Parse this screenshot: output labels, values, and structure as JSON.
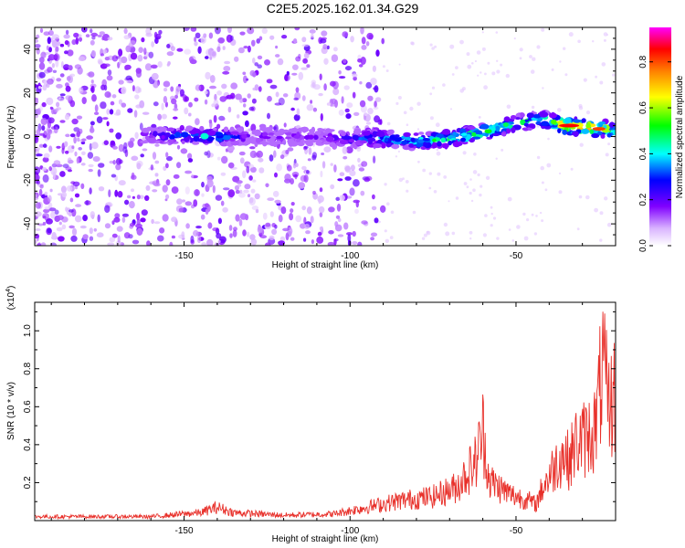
{
  "title": "C2E5.2025.162.01.34.G29",
  "chart_data": [
    {
      "type": "heatmap",
      "name": "spectrogram",
      "xlabel": "Height of straight line (km)",
      "ylabel": "Frequency (Hz)",
      "xlim": [
        -195,
        -20
      ],
      "ylim": [
        -50,
        50
      ],
      "xticks": [
        -150,
        -100,
        -50
      ],
      "yticks": [
        -40,
        -20,
        0,
        20,
        40
      ],
      "colorbar": {
        "label": "Normalized spectral amplitude",
        "ticks": [
          0.0,
          0.2,
          0.4,
          0.6,
          0.8
        ],
        "range": [
          0,
          0.95
        ],
        "colormap": [
          "#ffffff",
          "#d9b3ff",
          "#8000ff",
          "#0000ff",
          "#00ffff",
          "#00ff00",
          "#ffff00",
          "#ff8000",
          "#ff0000",
          "#ff00ff"
        ]
      },
      "ridge": [
        {
          "x": -162,
          "y": 0.5,
          "amp": 0.25
        },
        {
          "x": -150,
          "y": 0.5,
          "amp": 0.35
        },
        {
          "x": -140,
          "y": 0,
          "amp": 0.45
        },
        {
          "x": -130,
          "y": 0,
          "amp": 0.2
        },
        {
          "x": -110,
          "y": 0,
          "amp": 0.2
        },
        {
          "x": -100,
          "y": -1,
          "amp": 0.3
        },
        {
          "x": -90,
          "y": -1,
          "amp": 0.45
        },
        {
          "x": -80,
          "y": -2,
          "amp": 0.5
        },
        {
          "x": -70,
          "y": -1,
          "amp": 0.55
        },
        {
          "x": -60,
          "y": 2,
          "amp": 0.6
        },
        {
          "x": -50,
          "y": 6,
          "amp": 0.55
        },
        {
          "x": -42,
          "y": 8,
          "amp": 0.5
        },
        {
          "x": -35,
          "y": 5,
          "amp": 0.9
        },
        {
          "x": -27,
          "y": 4,
          "amp": 0.85
        },
        {
          "x": -20,
          "y": 3,
          "amp": 0.6
        }
      ]
    },
    {
      "type": "line",
      "name": "snr",
      "xlabel": "Height of straight line (km)",
      "ylabel": "SNR (10 * v/v)",
      "yscale_label": "(x10",
      "yscale_exp": "4",
      "xlim": [
        -195,
        -20
      ],
      "ylim": [
        0,
        1.15
      ],
      "xticks": [
        -150,
        -100,
        -50
      ],
      "yticks": [
        0.2,
        0.4,
        0.6,
        0.8,
        1.0
      ],
      "color": "#e8302a",
      "envelope": [
        {
          "x": -195,
          "y": 0.03
        },
        {
          "x": -160,
          "y": 0.03
        },
        {
          "x": -145,
          "y": 0.06
        },
        {
          "x": -140,
          "y": 0.1
        },
        {
          "x": -135,
          "y": 0.06
        },
        {
          "x": -120,
          "y": 0.04
        },
        {
          "x": -105,
          "y": 0.05
        },
        {
          "x": -95,
          "y": 0.1
        },
        {
          "x": -85,
          "y": 0.15
        },
        {
          "x": -75,
          "y": 0.18
        },
        {
          "x": -68,
          "y": 0.25
        },
        {
          "x": -62,
          "y": 0.45
        },
        {
          "x": -60,
          "y": 0.68
        },
        {
          "x": -58,
          "y": 0.3
        },
        {
          "x": -52,
          "y": 0.2
        },
        {
          "x": -46,
          "y": 0.15
        },
        {
          "x": -44,
          "y": 0.12
        },
        {
          "x": -42,
          "y": 0.25
        },
        {
          "x": -39,
          "y": 0.38
        },
        {
          "x": -36,
          "y": 0.5
        },
        {
          "x": -34,
          "y": 0.45
        },
        {
          "x": -32,
          "y": 0.58
        },
        {
          "x": -29,
          "y": 0.62
        },
        {
          "x": -26,
          "y": 0.7
        },
        {
          "x": -24,
          "y": 1.15
        },
        {
          "x": -22,
          "y": 0.85
        },
        {
          "x": -20,
          "y": 0.95
        }
      ]
    }
  ]
}
